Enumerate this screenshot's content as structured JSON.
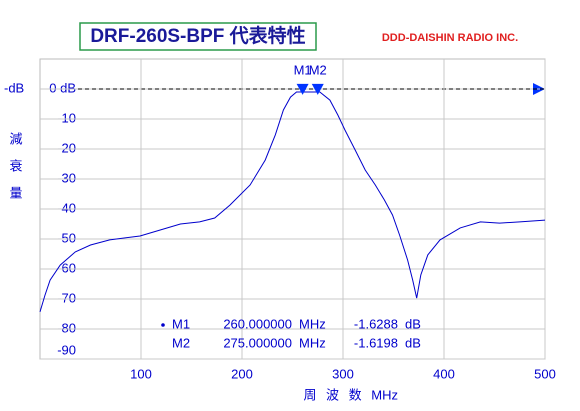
{
  "chart_data": {
    "type": "line",
    "title": "DRF-260S-BPF 代表特性",
    "subtitle": "DDD-DAISHIN RADIO INC.",
    "y_unit": "-dB",
    "ylabel": "減衰量",
    "xlabel": "周 波 数 MHz",
    "x": [
      0,
      5,
      10,
      20,
      35,
      50,
      69,
      99,
      119,
      139,
      158,
      173,
      188,
      208,
      223,
      233,
      241,
      248,
      254,
      267,
      277,
      287,
      295,
      302,
      312,
      322,
      332,
      341,
      349,
      356,
      364,
      369,
      373,
      377,
      384,
      396,
      416,
      436,
      455,
      475,
      500
    ],
    "series": [
      {
        "color": "#0000cc",
        "values": [
          -74.3,
          -68.7,
          -63.7,
          -58.7,
          -54.3,
          -52,
          -50.3,
          -49,
          -47,
          -45,
          -44.3,
          -43,
          -38.7,
          -32,
          -23.7,
          -15.3,
          -7,
          -2.7,
          -1,
          -1,
          -1,
          -3.7,
          -8.7,
          -13.7,
          -20.3,
          -27,
          -32,
          -37,
          -42,
          -48.7,
          -57,
          -63.7,
          -69.7,
          -62,
          -55.3,
          -50.3,
          -46.3,
          -44.3,
          -44.7,
          -44.3,
          -43.7
        ]
      }
    ],
    "xlim": [
      0,
      500
    ],
    "xticks": [
      100,
      200,
      300,
      400,
      500
    ],
    "ylim": [
      -90,
      10
    ],
    "yticks": [
      {
        "value": 0,
        "label": "0 dB"
      },
      -10,
      -20,
      -30,
      -40,
      -50,
      -60,
      -70,
      -80,
      -90
    ],
    "grid": true,
    "markers": [
      {
        "name": "M1",
        "freq": 260,
        "freq_label": "260.000000",
        "unit": "MHz",
        "level": -1.6288,
        "level_unit": "dB"
      },
      {
        "name": "M2",
        "freq": 275,
        "freq_label": "275.000000",
        "unit": "MHz",
        "level": -1.6198,
        "level_unit": "dB"
      }
    ]
  }
}
